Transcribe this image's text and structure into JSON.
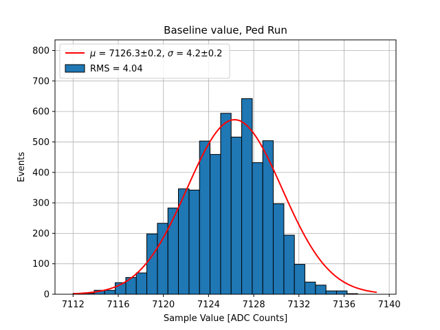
{
  "chart_data": {
    "type": "bar",
    "title": "Baseline value, Ped Run",
    "xlabel": "Sample Value [ADC Counts]",
    "ylabel": "Events",
    "xlim": [
      7110.4,
      7140.6
    ],
    "ylim": [
      0,
      835
    ],
    "xticks": [
      7112,
      7116,
      7120,
      7124,
      7128,
      7132,
      7136,
      7140
    ],
    "yticks": [
      0,
      100,
      200,
      300,
      400,
      500,
      600,
      700,
      800
    ],
    "grid": true,
    "legend_position": "top-left",
    "bar_color": "#1f77b4",
    "fit_color": "#ff0000",
    "bin_edges": [
      7112.0,
      7112.93,
      7113.87,
      7114.8,
      7115.73,
      7116.67,
      7117.6,
      7118.53,
      7119.47,
      7120.4,
      7121.33,
      7122.27,
      7123.2,
      7124.13,
      7125.07,
      7126.0,
      7126.93,
      7127.87,
      7128.8,
      7129.73,
      7130.67,
      7131.6,
      7132.53,
      7133.47,
      7134.4,
      7135.33,
      7136.27,
      7137.2
    ],
    "counts": [
      3,
      3,
      13,
      13,
      38,
      55,
      70,
      198,
      233,
      283,
      346,
      342,
      503,
      459,
      594,
      516,
      642,
      432,
      504,
      297,
      194,
      98,
      40,
      30,
      11,
      11,
      2
    ],
    "fit": {
      "label": "$\\mu = 7126.3 \\pm 0.2$, $\\sigma = 4.2 \\pm 0.2$",
      "label_mu": "μ",
      "label_mid": " = 7126.3±0.2, ",
      "label_sigma": "σ",
      "label_end": " = 4.2±0.2",
      "mu": 7126.3,
      "sigma": 4.2,
      "amplitude": 573,
      "x_range": [
        7112.0,
        7138.9
      ]
    },
    "hist_label": "RMS = 4.04"
  }
}
